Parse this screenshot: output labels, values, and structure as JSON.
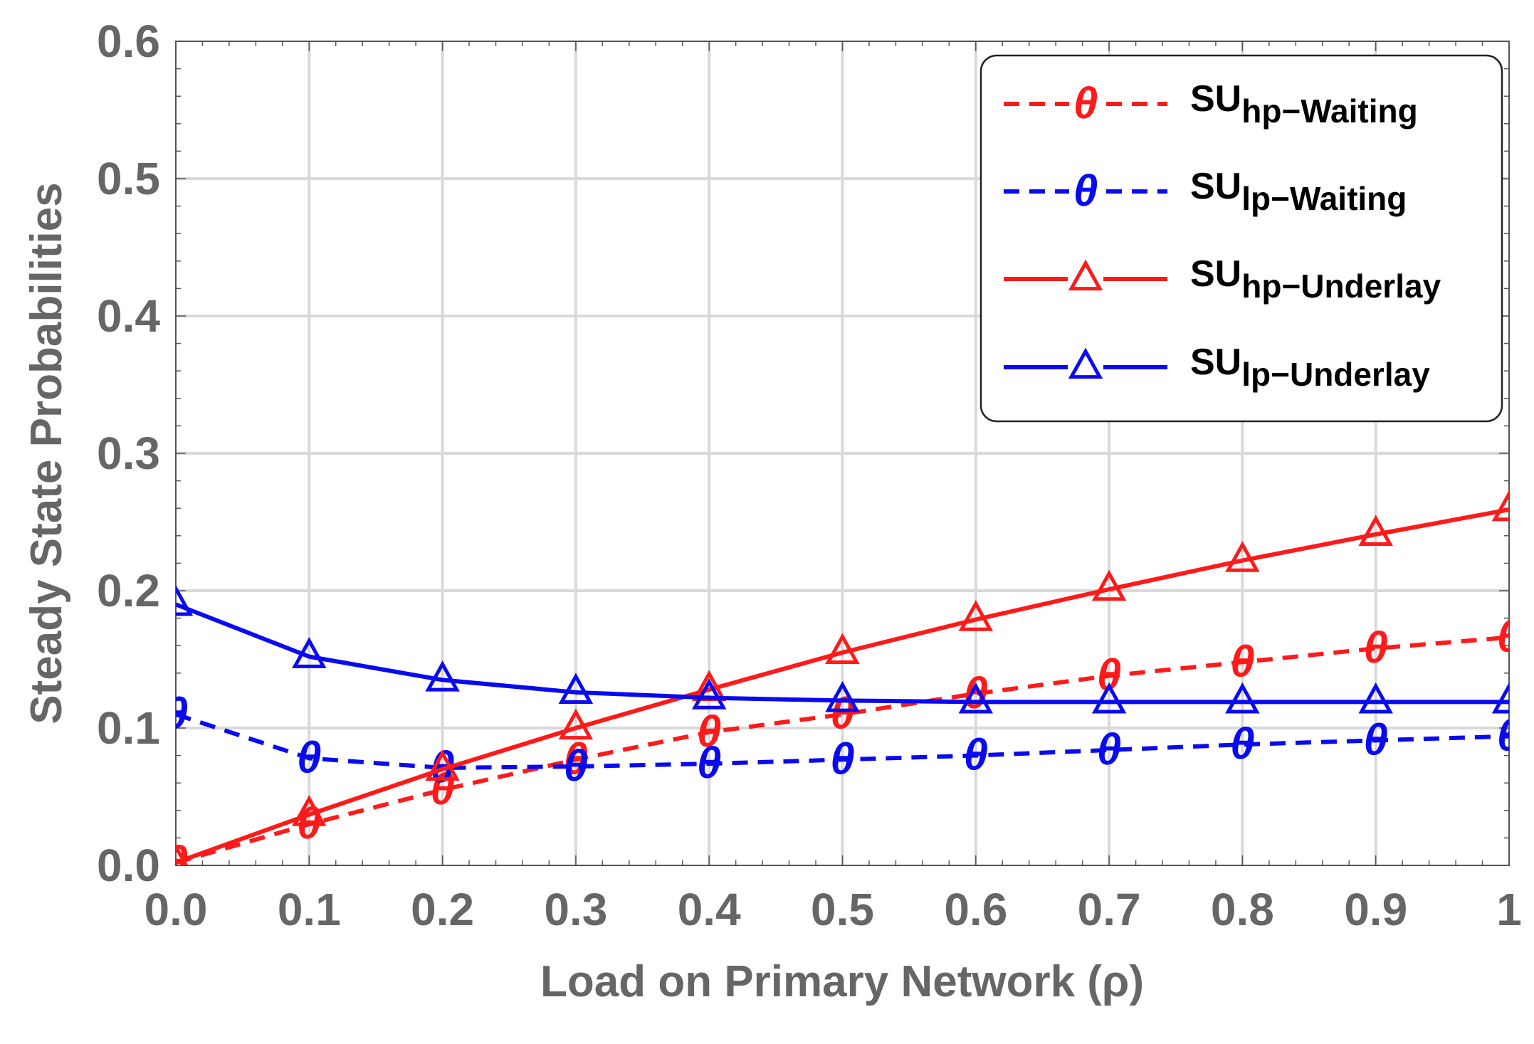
{
  "chart_data": {
    "type": "line",
    "title": "",
    "xlabel": "Load on Primary Network (ρ)",
    "ylabel": "Steady State Probabilities",
    "xlim": [
      0,
      1
    ],
    "ylim": [
      0,
      0.6
    ],
    "grid": true,
    "legend_position": "top-right",
    "x": [
      0.0,
      0.1,
      0.2,
      0.3,
      0.4,
      0.5,
      0.6,
      0.7,
      0.8,
      0.9,
      1.0
    ],
    "x_ticks": [
      {
        "value": 0.0,
        "label": "0.0"
      },
      {
        "value": 0.1,
        "label": "0.1"
      },
      {
        "value": 0.2,
        "label": "0.2"
      },
      {
        "value": 0.3,
        "label": "0.3"
      },
      {
        "value": 0.4,
        "label": "0.4"
      },
      {
        "value": 0.5,
        "label": "0.5"
      },
      {
        "value": 0.6,
        "label": "0.6"
      },
      {
        "value": 0.7,
        "label": "0.7"
      },
      {
        "value": 0.8,
        "label": "0.8"
      },
      {
        "value": 0.9,
        "label": "0.9"
      },
      {
        "value": 1.0,
        "label": "1"
      }
    ],
    "y_ticks": [
      {
        "value": 0.0,
        "label": "0.0"
      },
      {
        "value": 0.1,
        "label": "0.1"
      },
      {
        "value": 0.2,
        "label": "0.2"
      },
      {
        "value": 0.3,
        "label": "0.3"
      },
      {
        "value": 0.4,
        "label": "0.4"
      },
      {
        "value": 0.5,
        "label": "0.5"
      },
      {
        "value": 0.6,
        "label": "0.6"
      }
    ],
    "series": [
      {
        "name": "SU_hp-Waiting",
        "label_main": "SU",
        "label_sub": "hp−Waiting",
        "marker_symbol": "θ",
        "marker": "theta",
        "dash": true,
        "color": "#ff1a1a",
        "values": [
          0.002,
          0.03,
          0.055,
          0.077,
          0.097,
          0.11,
          0.125,
          0.138,
          0.148,
          0.158,
          0.166
        ]
      },
      {
        "name": "SU_lp-Waiting",
        "label_main": "SU",
        "label_sub": "lp−Waiting",
        "marker_symbol": "θ",
        "marker": "theta",
        "dash": true,
        "color": "#0a0af0",
        "values": [
          0.11,
          0.078,
          0.071,
          0.072,
          0.074,
          0.077,
          0.08,
          0.084,
          0.088,
          0.091,
          0.094
        ]
      },
      {
        "name": "SU_hp-Underlay",
        "label_main": "SU",
        "label_sub": "hp−Underlay",
        "marker_symbol": "△",
        "marker": "triangle",
        "dash": false,
        "color": "#ff1a1a",
        "values": [
          0.002,
          0.037,
          0.07,
          0.1,
          0.128,
          0.155,
          0.179,
          0.201,
          0.222,
          0.241,
          0.259
        ]
      },
      {
        "name": "SU_lp-Underlay",
        "label_main": "SU",
        "label_sub": "lp−Underlay",
        "marker_symbol": "△",
        "marker": "triangle",
        "dash": false,
        "color": "#0a0af0",
        "values": [
          0.19,
          0.152,
          0.135,
          0.126,
          0.122,
          0.12,
          0.119,
          0.119,
          0.119,
          0.119,
          0.119
        ]
      }
    ]
  },
  "colors": {
    "axis_text": "#666666",
    "grid": "#d9d9d9",
    "frame": "#555555"
  }
}
